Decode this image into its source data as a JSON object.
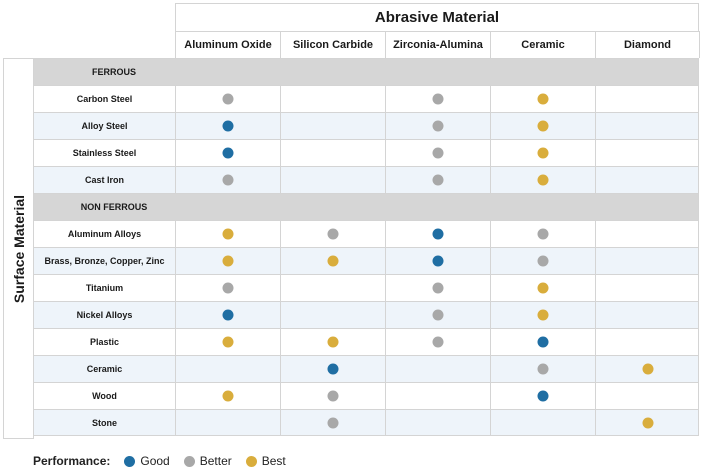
{
  "header": {
    "title": "Abrasive Material",
    "side_title": "Surface Material"
  },
  "columns": [
    "Aluminum Oxide",
    "Silicon Carbide",
    "Zirconia-Alumina",
    "Ceramic",
    "Diamond"
  ],
  "legend": {
    "title": "Performance:",
    "entries": [
      {
        "key": "good",
        "label": "Good"
      },
      {
        "key": "better",
        "label": "Better"
      },
      {
        "key": "best",
        "label": "Best"
      }
    ]
  },
  "colors": {
    "good": "#1f6ea3",
    "better": "#a8a8a8",
    "best": "#d9ad3c",
    "group_background": "#d6d6d6",
    "alt_row_background": "#eef4fa",
    "grid_line": "#d4d4d4"
  },
  "rows": [
    {
      "type": "group",
      "label": "FERROUS"
    },
    {
      "type": "item",
      "label": "Carbon Steel",
      "ratings": [
        "better",
        null,
        "better",
        "best",
        null
      ]
    },
    {
      "type": "item",
      "label": "Alloy Steel",
      "ratings": [
        "good",
        null,
        "better",
        "best",
        null
      ]
    },
    {
      "type": "item",
      "label": "Stainless Steel",
      "ratings": [
        "good",
        null,
        "better",
        "best",
        null
      ]
    },
    {
      "type": "item",
      "label": "Cast Iron",
      "ratings": [
        "better",
        null,
        "better",
        "best",
        null
      ]
    },
    {
      "type": "group",
      "label": "NON FERROUS"
    },
    {
      "type": "item",
      "label": "Aluminum Alloys",
      "ratings": [
        "best",
        "better",
        "good",
        "better",
        null
      ]
    },
    {
      "type": "item",
      "label": "Brass, Bronze, Copper, Zinc",
      "ratings": [
        "best",
        "best",
        "good",
        "better",
        null
      ]
    },
    {
      "type": "item",
      "label": "Titanium",
      "ratings": [
        "better",
        null,
        "better",
        "best",
        null
      ]
    },
    {
      "type": "item",
      "label": "Nickel Alloys",
      "ratings": [
        "good",
        null,
        "better",
        "best",
        null
      ]
    },
    {
      "type": "item",
      "label": "Plastic",
      "ratings": [
        "best",
        "best",
        "better",
        "good",
        null
      ]
    },
    {
      "type": "item",
      "label": "Ceramic",
      "ratings": [
        null,
        "good",
        null,
        "better",
        "best"
      ]
    },
    {
      "type": "item",
      "label": "Wood",
      "ratings": [
        "best",
        "better",
        null,
        "good",
        null
      ]
    },
    {
      "type": "item",
      "label": "Stone",
      "ratings": [
        null,
        "better",
        null,
        null,
        "best"
      ]
    }
  ]
}
